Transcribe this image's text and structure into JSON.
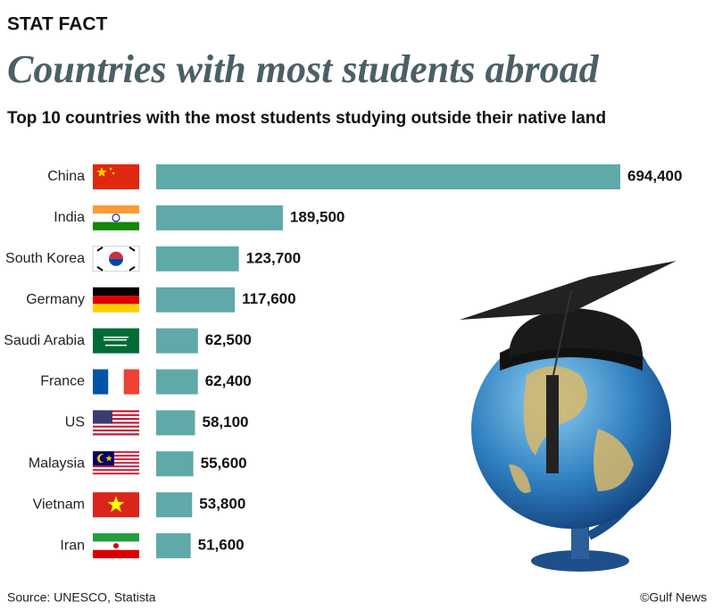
{
  "header": "STAT FACT",
  "chart_data": {
    "type": "bar",
    "orientation": "horizontal",
    "title": "Countries with most students abroad",
    "subtitle": "Top 10 countries with the most students studying outside their native land",
    "categories": [
      "China",
      "India",
      "South Korea",
      "Germany",
      "Saudi Arabia",
      "France",
      "US",
      "Malaysia",
      "Vietnam",
      "Iran"
    ],
    "values": [
      694400,
      189500,
      123700,
      117600,
      62500,
      62400,
      58100,
      55600,
      53800,
      51600
    ],
    "value_labels": [
      "694,400",
      "189,500",
      "123,700",
      "117,600",
      "62,500",
      "62,400",
      "58,100",
      "55,600",
      "53,800",
      "51,600"
    ],
    "color": "#5fa9a8"
  },
  "footer": {
    "source": "Source: UNESCO, Statista",
    "credit": "©Gulf News"
  }
}
